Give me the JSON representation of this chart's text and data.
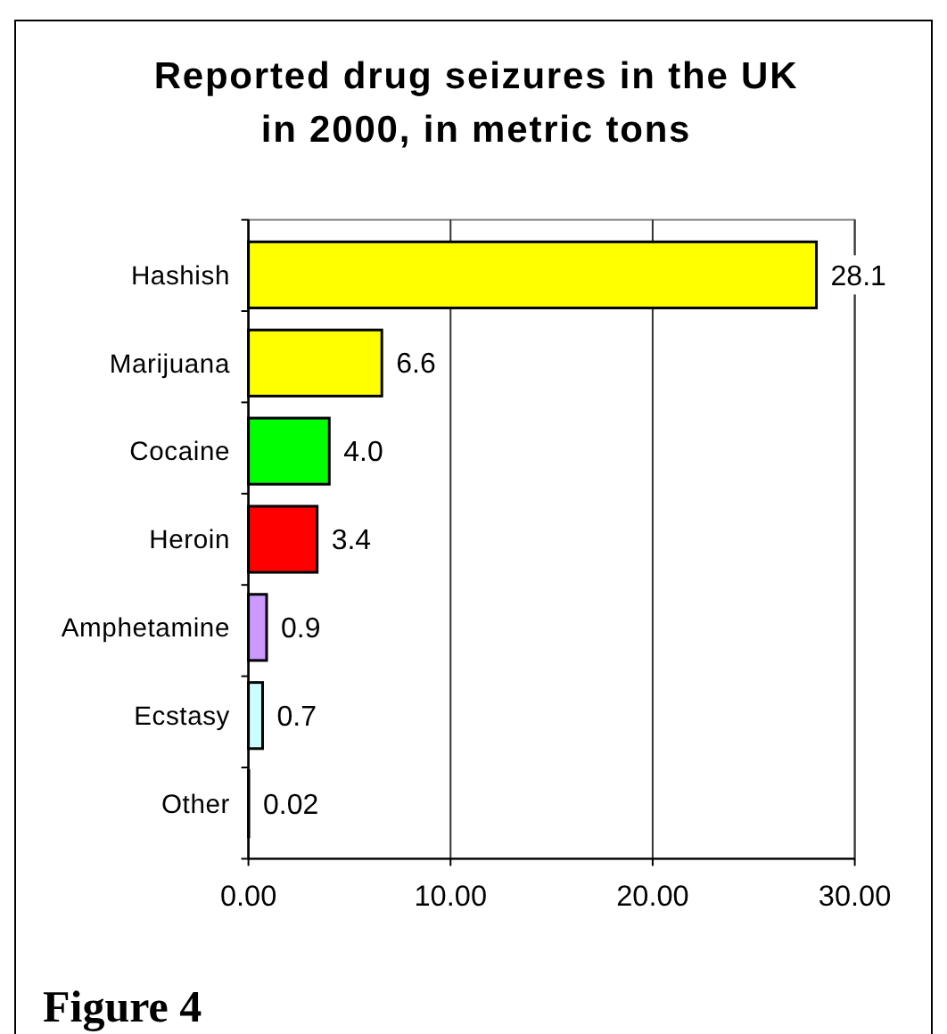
{
  "chart_data": {
    "type": "bar",
    "orientation": "horizontal",
    "title": "Reported drug seizures in the UK\nin 2000, in metric tons",
    "categories": [
      "Hashish",
      "Marijuana",
      "Cocaine",
      "Heroin",
      "Amphetamine",
      "Ecstasy",
      "Other"
    ],
    "values": [
      28.1,
      6.6,
      4.0,
      3.4,
      0.9,
      0.7,
      0.02
    ],
    "colors": [
      "#ffff00",
      "#ffff00",
      "#00ff00",
      "#ff0000",
      "#cc99ff",
      "#ccffff",
      "#ffffff"
    ],
    "value_labels": [
      "28.1",
      "6.6",
      "4.0",
      "3.4",
      "0.9",
      "0.7",
      "0.02"
    ],
    "xlim": [
      0,
      30
    ],
    "xticks": [
      {
        "value": 0,
        "label": "0.00"
      },
      {
        "value": 10,
        "label": "10.00"
      },
      {
        "value": 20,
        "label": "20.00"
      },
      {
        "value": 30,
        "label": "30.00"
      }
    ],
    "grid": "x",
    "annotations": [
      "Figure 4"
    ]
  }
}
